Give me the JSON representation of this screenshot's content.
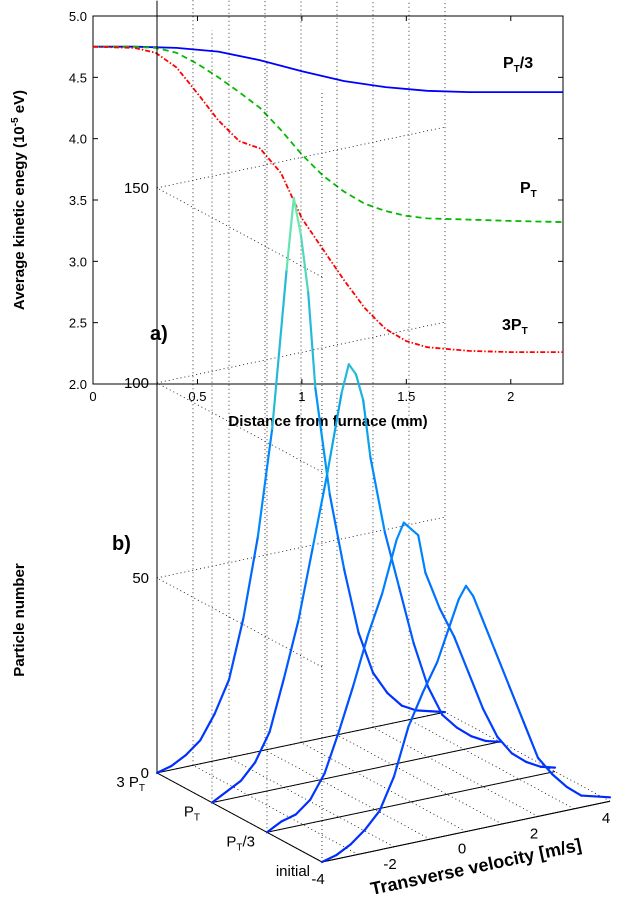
{
  "chart_data": [
    {
      "type": "line",
      "panel_label": "a)",
      "xlabel": "Distance from furnace (mm)",
      "ylabel": "Average kinetic enegy (10",
      "ylabel_exp": "-5",
      "ylabel_unit": " eV)",
      "xlim": [
        0,
        2.25
      ],
      "ylim": [
        2.0,
        5.0
      ],
      "xticks": [
        "0",
        "0.5",
        "1",
        "1.5",
        "2"
      ],
      "yticks": [
        "2.0",
        "2.5",
        "3.0",
        "3.5",
        "4.0",
        "4.5",
        "5.0"
      ],
      "grid": false,
      "series": [
        {
          "name": "PT/3",
          "label_main": "P",
          "label_sub": "T",
          "label_suffix": "/3",
          "color": "#0000ff",
          "style": "solid",
          "x": [
            0,
            0.2,
            0.4,
            0.6,
            0.8,
            1.0,
            1.2,
            1.4,
            1.6,
            1.8,
            2.0,
            2.25
          ],
          "y": [
            4.75,
            4.75,
            4.74,
            4.71,
            4.64,
            4.55,
            4.47,
            4.42,
            4.39,
            4.38,
            4.38,
            4.38
          ]
        },
        {
          "name": "PT",
          "label_prefix": "",
          "label_main": "P",
          "label_sub": "T",
          "color": "#00bb00",
          "style": "dashed",
          "x": [
            0,
            0.2,
            0.3,
            0.4,
            0.5,
            0.6,
            0.7,
            0.8,
            0.9,
            1.0,
            1.1,
            1.2,
            1.3,
            1.4,
            1.5,
            1.6,
            1.8,
            2.0,
            2.25
          ],
          "y": [
            4.75,
            4.75,
            4.74,
            4.7,
            4.61,
            4.5,
            4.38,
            4.25,
            4.07,
            3.87,
            3.7,
            3.57,
            3.47,
            3.41,
            3.37,
            3.35,
            3.34,
            3.33,
            3.32
          ]
        },
        {
          "name": "3PT",
          "label_prefix": "3",
          "label_main": "P",
          "label_sub": "T",
          "color": "#ff0000",
          "style": "dashdot",
          "x": [
            0,
            0.2,
            0.3,
            0.4,
            0.5,
            0.6,
            0.7,
            0.8,
            0.9,
            1.0,
            1.1,
            1.2,
            1.3,
            1.4,
            1.5,
            1.6,
            1.8,
            2.0,
            2.25
          ],
          "y": [
            4.75,
            4.74,
            4.7,
            4.58,
            4.37,
            4.15,
            3.98,
            3.92,
            3.72,
            3.35,
            3.1,
            2.85,
            2.62,
            2.45,
            2.35,
            2.3,
            2.27,
            2.26,
            2.26
          ]
        }
      ]
    },
    {
      "type": "line",
      "panel_label": "b)",
      "xlabel": "Transverse velocity [m/s]",
      "ylabel": "Particle number",
      "xlim": [
        -4,
        4
      ],
      "zlim": [
        0,
        150
      ],
      "xticks": [
        "-4",
        "-2",
        "0",
        "2",
        "4"
      ],
      "zticks": [
        "0",
        "50",
        "100",
        "150"
      ],
      "grid": true,
      "depth_labels": [
        {
          "main": "initial",
          "sub": "",
          "suffix": ""
        },
        {
          "main": "P",
          "sub": "T",
          "suffix": "/3"
        },
        {
          "main": "P",
          "sub": "T",
          "suffix": ""
        },
        {
          "main": "3 P",
          "sub": "T",
          "suffix": ""
        }
      ],
      "series": [
        {
          "name": "initial",
          "x": [
            -4,
            -3.6,
            -3.2,
            -2.8,
            -2.4,
            -2.0,
            -1.6,
            -1.2,
            -0.8,
            -0.4,
            -0.2,
            0,
            0.2,
            0.4,
            0.8,
            1.2,
            1.6,
            2.0,
            2.4,
            2.8,
            3.2,
            3.6,
            4
          ],
          "y": [
            0,
            1,
            3,
            6,
            10,
            18,
            30,
            38,
            45,
            55,
            60,
            63,
            60,
            55,
            45,
            35,
            25,
            15,
            10,
            6,
            3,
            2,
            1
          ]
        },
        {
          "name": "PT/3",
          "x": [
            -4,
            -3.6,
            -3.2,
            -2.8,
            -2.4,
            -2.0,
            -1.6,
            -1.2,
            -0.8,
            -0.4,
            -0.2,
            0,
            0.2,
            0.4,
            0.8,
            1.2,
            1.6,
            2.0,
            2.4,
            2.8,
            3.2,
            3.6,
            4
          ],
          "y": [
            0,
            2,
            3,
            6,
            12,
            22,
            33,
            45,
            55,
            68,
            72,
            70,
            68,
            58,
            48,
            40,
            30,
            20,
            12,
            7,
            4,
            2,
            1
          ]
        },
        {
          "name": "PT",
          "x": [
            -4,
            -3.6,
            -3.2,
            -2.8,
            -2.4,
            -2.0,
            -1.6,
            -1.2,
            -0.8,
            -0.4,
            -0.2,
            0,
            0.2,
            0.4,
            0.8,
            1.2,
            1.6,
            2.0,
            2.4,
            2.8,
            3.2,
            3.6,
            4
          ],
          "y": [
            0,
            2,
            4,
            8,
            15,
            28,
            42,
            60,
            78,
            98,
            105,
            102,
            95,
            80,
            60,
            45,
            30,
            18,
            10,
            6,
            3,
            1,
            0
          ]
        },
        {
          "name": "3 PT",
          "x": [
            -4,
            -3.6,
            -3.2,
            -2.8,
            -2.4,
            -2.0,
            -1.6,
            -1.2,
            -0.8,
            -0.4,
            -0.2,
            0,
            0.2,
            0.4,
            0.8,
            1.2,
            1.6,
            2.0,
            2.4,
            2.8,
            3.2,
            3.6,
            4
          ],
          "y": [
            0,
            1,
            3,
            6,
            12,
            20,
            35,
            55,
            82,
            122,
            140,
            130,
            115,
            90,
            62,
            42,
            25,
            14,
            8,
            4,
            2,
            1,
            0
          ]
        }
      ]
    }
  ]
}
